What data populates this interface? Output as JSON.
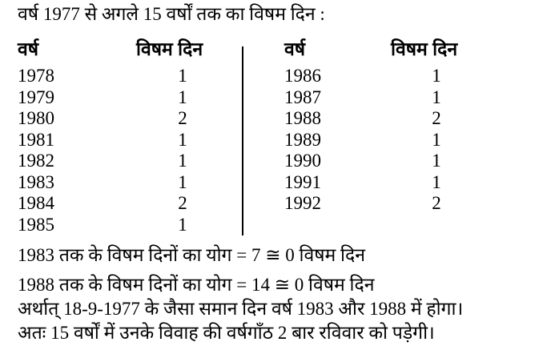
{
  "intro": "वर्ष 1977 से अगले 15 वर्षों तक का विषम दिन :",
  "headers": {
    "year": "वर्ष",
    "odd_days": "विषम दिन"
  },
  "left_table": [
    {
      "year": "1978",
      "odd": "1"
    },
    {
      "year": "1979",
      "odd": "1"
    },
    {
      "year": "1980",
      "odd": "2"
    },
    {
      "year": "1981",
      "odd": "1"
    },
    {
      "year": "1982",
      "odd": "1"
    },
    {
      "year": "1983",
      "odd": "1"
    },
    {
      "year": "1984",
      "odd": "2"
    },
    {
      "year": "1985",
      "odd": "1"
    }
  ],
  "right_table": [
    {
      "year": "1986",
      "odd": "1"
    },
    {
      "year": "1987",
      "odd": "1"
    },
    {
      "year": "1988",
      "odd": "2"
    },
    {
      "year": "1989",
      "odd": "1"
    },
    {
      "year": "1990",
      "odd": "1"
    },
    {
      "year": "1991",
      "odd": "1"
    },
    {
      "year": "1992",
      "odd": "2"
    }
  ],
  "summary": [
    "1983 तक के विषम दिनों का योग = 7 ≅ 0 विषम दिन",
    "1988 तक के विषम दिनों का योग = 14 ≅ 0 विषम दिन",
    "अर्थात् 18-9-1977 के जैसा समान दिन वर्ष 1983 और 1988 में होगा।",
    "अतः 15 वर्षों में उनके विवाह की वर्षगाँठ 2 बार रविवार को पड़ेगी।"
  ]
}
